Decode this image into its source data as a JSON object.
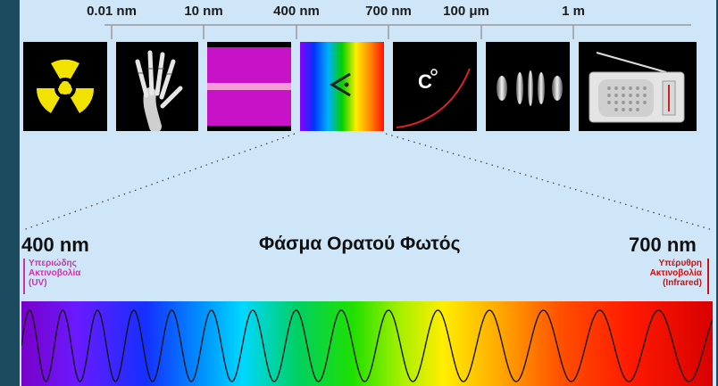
{
  "scale": {
    "labels": [
      "0.01 nm",
      "10 nm",
      "400 nm",
      "700 nm",
      "100 μm",
      "1 m"
    ]
  },
  "tiles": [
    {
      "name": "gamma",
      "icon": "radiation-icon"
    },
    {
      "name": "xray",
      "icon": "xray-hand-icon"
    },
    {
      "name": "ultraviolet",
      "icon": "uv-bands-icon"
    },
    {
      "name": "visible",
      "icon": "eye-icon"
    },
    {
      "name": "infrared",
      "icon": "thermometer-icon"
    },
    {
      "name": "microwave",
      "icon": "microwave-icon"
    },
    {
      "name": "radio",
      "icon": "radio-icon"
    }
  ],
  "visible": {
    "title": "Φάσμα Ορατού Φωτός",
    "left_wavelength": "400 nm",
    "right_wavelength": "700 nm",
    "uv_label": [
      "Υπεριώδης",
      "Ακτινοβολία",
      "(UV)"
    ],
    "ir_label": [
      "Υπέρυθρη",
      "Ακτινοβολία",
      "(Infrared)"
    ]
  },
  "colors": {
    "background": "#cfe6f8",
    "frame": "#1c4a5e",
    "uv_text": "#cc33aa",
    "ir_text": "#cc1111"
  }
}
